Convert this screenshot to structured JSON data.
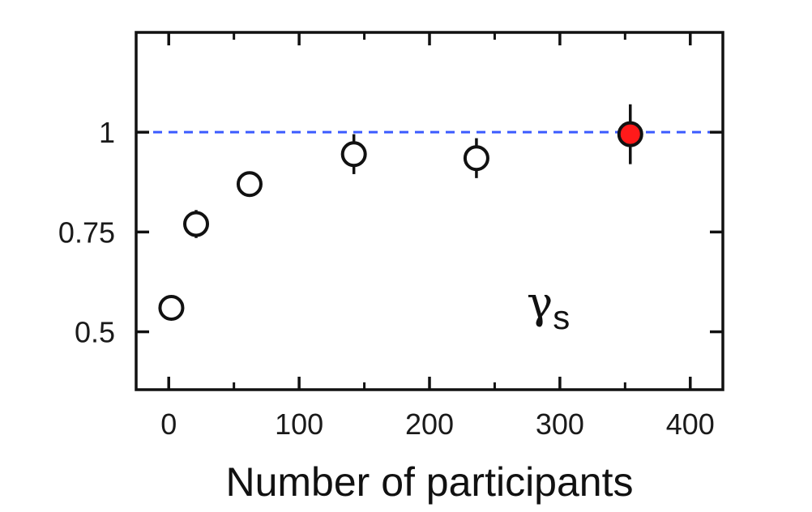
{
  "chart_data": {
    "type": "scatter",
    "title": "",
    "xlabel": "Number of participants",
    "ylabel": "",
    "xlim": [
      -25,
      425
    ],
    "ylim": [
      0.355,
      1.25
    ],
    "x_ticks": [
      0,
      100,
      200,
      300,
      400
    ],
    "x_minor_ticks": [
      50,
      150,
      250,
      350
    ],
    "y_ticks": [
      0.5,
      0.75,
      1
    ],
    "x_tick_labels": [
      "0",
      "100",
      "200",
      "300",
      "400"
    ],
    "y_tick_labels": [
      "0.5",
      "0.75",
      "1"
    ],
    "grid": false,
    "reference_line": {
      "y": 1,
      "style": "dashed",
      "color": "#3b5bff"
    },
    "annotation": {
      "symbol": "γ",
      "subscript": "s"
    },
    "series": [
      {
        "marker": "open-circle",
        "color": "#000000",
        "points": [
          {
            "x": 2,
            "y": 0.56,
            "err": 0.02
          },
          {
            "x": 21,
            "y": 0.77,
            "err": 0.035
          },
          {
            "x": 62,
            "y": 0.87,
            "err": 0.03
          },
          {
            "x": 142,
            "y": 0.945,
            "err": 0.05
          },
          {
            "x": 236,
            "y": 0.935,
            "err": 0.05
          }
        ]
      },
      {
        "marker": "filled-circle",
        "color": "#ff1a1a",
        "points": [
          {
            "x": 354,
            "y": 0.995,
            "err": 0.075
          }
        ]
      }
    ]
  }
}
